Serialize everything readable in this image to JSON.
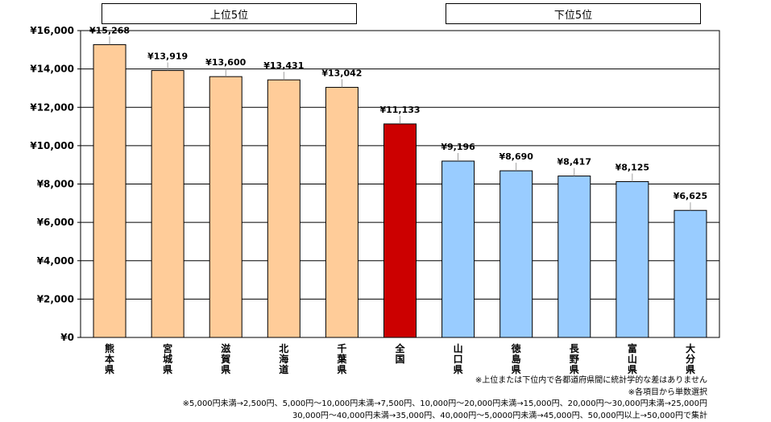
{
  "header_groups": [
    {
      "label": "上位5位"
    },
    {
      "label": "下位5位"
    }
  ],
  "chart_data": {
    "type": "bar",
    "categories": [
      "熊本県",
      "宮城県",
      "滋賀県",
      "北海道",
      "千葉県",
      "全国",
      "山口県",
      "徳島県",
      "長野県",
      "富山県",
      "大分県"
    ],
    "values": [
      15268,
      13919,
      13600,
      13431,
      13042,
      11133,
      9196,
      8690,
      8417,
      8125,
      6625
    ],
    "value_labels": [
      "¥15,268",
      "¥13,919",
      "¥13,600",
      "¥13,431",
      "¥13,042",
      "¥11,133",
      "¥9,196",
      "¥8,690",
      "¥8,417",
      "¥8,125",
      "¥6,625"
    ],
    "bar_colors": [
      "#FFCC99",
      "#FFCC99",
      "#FFCC99",
      "#FFCC99",
      "#FFCC99",
      "#CC0000",
      "#99CCFF",
      "#99CCFF",
      "#99CCFF",
      "#99CCFF",
      "#99CCFF"
    ],
    "ylim": [
      0,
      16000
    ],
    "yticks": [
      0,
      2000,
      4000,
      6000,
      8000,
      10000,
      12000,
      14000,
      16000
    ],
    "ytick_labels": [
      "¥0",
      "¥2,000",
      "¥4,000",
      "¥6,000",
      "¥8,000",
      "¥10,000",
      "¥12,000",
      "¥14,000",
      "¥16,000"
    ],
    "grid": true,
    "title": "",
    "xlabel": "",
    "ylabel": ""
  },
  "notes": [
    "※上位または下位内で各都道府県間に統計学的な差はありません",
    "※各項目から単数選択",
    "※5,000円未満→2,500円、5,000円～10,000円未満→7,500円、10,000円～20,000円未満→15,000円、20,000円～30,000円未満→25,000円",
    "30,000円～40,000円未満→35,000円、40,000円～5,0000円未満→45,000円、50,000円以上→50,000円で集計"
  ]
}
